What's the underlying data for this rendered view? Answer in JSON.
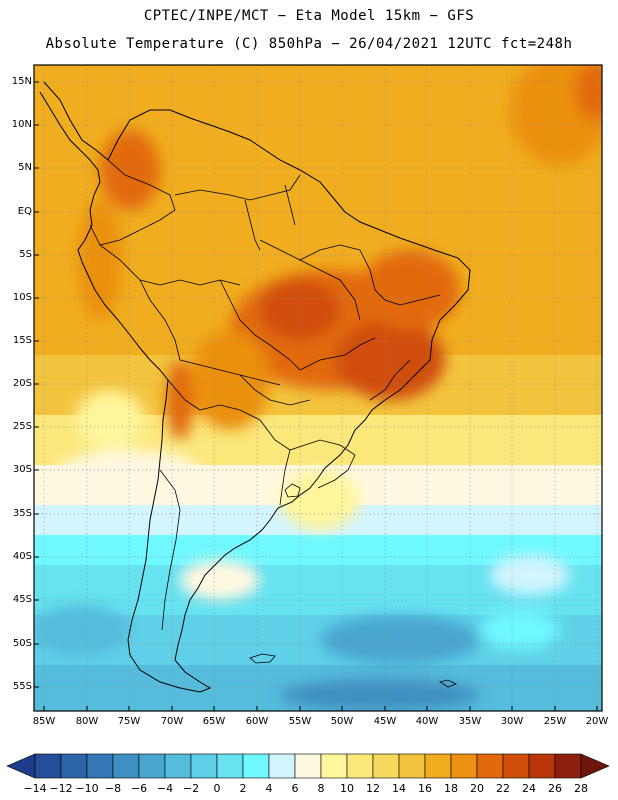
{
  "header": {
    "line1": "CPTEC/INPE/MCT −  Eta Model 15km − GFS",
    "line2": "Absolute Temperature (C) 850hPa − 26/04/2021 12UTC fct=248h"
  },
  "map": {
    "lat_labels": [
      "15N",
      "10N",
      "5N",
      "EQ",
      "5S",
      "10S",
      "15S",
      "20S",
      "25S",
      "30S",
      "35S",
      "40S",
      "45S",
      "50S",
      "55S"
    ],
    "lon_labels": [
      "85W",
      "80W",
      "75W",
      "70W",
      "65W",
      "60W",
      "55W",
      "50W",
      "45W",
      "40W",
      "35W",
      "30W",
      "25W",
      "20W"
    ]
  },
  "colorbar": {
    "labels": [
      "−14",
      "−12",
      "−10",
      "−8",
      "−6",
      "−4",
      "−2",
      "0",
      "2",
      "4",
      "6",
      "8",
      "10",
      "12",
      "14",
      "16",
      "18",
      "20",
      "22",
      "24",
      "26",
      "28"
    ],
    "colors": [
      "#1f3c8c",
      "#244e98",
      "#2c64a8",
      "#3479b5",
      "#3f8fc2",
      "#4aa6cf",
      "#55bcdb",
      "#5fd0e8",
      "#66e2f0",
      "#6ff8ff",
      "#d2f5ff",
      "#fff8e0",
      "#fff59b",
      "#fbe77a",
      "#f6d95c",
      "#f2c43e",
      "#f0ad1f",
      "#eb9010",
      "#e26a0c",
      "#d04d0a",
      "#b8360a",
      "#8f1f0e",
      "#6e150c"
    ]
  }
}
